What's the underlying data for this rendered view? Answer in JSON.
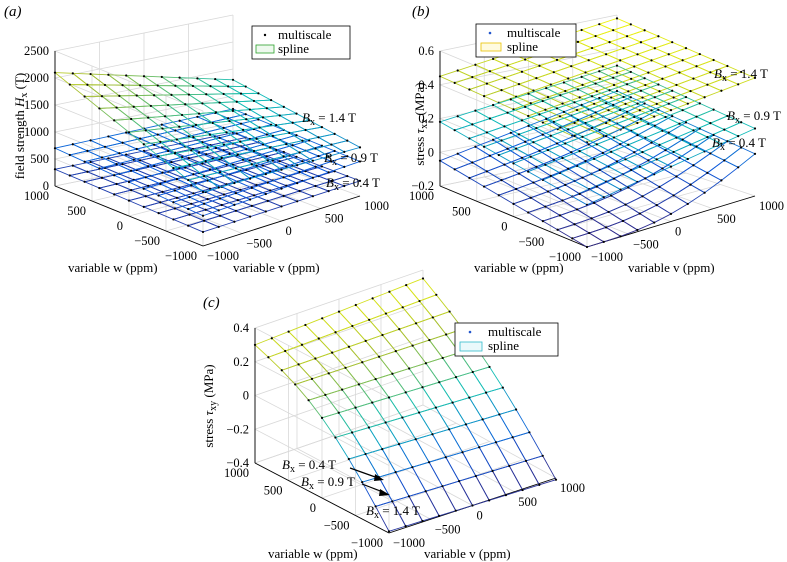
{
  "chart_data": [
    {
      "panel_label": "(a)",
      "type": "surface3d",
      "zlabel_prefix": "field strength ",
      "zlabel_sym": "H",
      "zlabel_sub": "x",
      "zlabel_suffix": " (T)",
      "xlabel": "variable v (ppm)",
      "ylabel": "variable w (ppm)",
      "x_ticks": [
        "−1000",
        "−500",
        "0",
        "500",
        "1000"
      ],
      "y_ticks": [
        "−1000",
        "−500",
        "0",
        "500",
        "1000"
      ],
      "z_ticks": [
        "0",
        "500",
        "1000",
        "1500",
        "2000",
        "2500"
      ],
      "xlim": [
        -1000,
        1000
      ],
      "ylim": [
        -1000,
        1000
      ],
      "zlim": [
        0,
        2500
      ],
      "legend": [
        "multiscale",
        "spline"
      ],
      "legend_colors": [
        "#2ca02c",
        "#2ca02c"
      ],
      "series": [
        {
          "name": "B_x = 0.4 T",
          "label_sym": "B",
          "label_sub": "x",
          "label_val": " = 0.4 T",
          "value_at_corners": {
            "v_min_w_max": 310,
            "v_max_w_max": 320,
            "v_min_w_min": 260,
            "v_max_w_min": 280
          }
        },
        {
          "name": "B_x = 0.9 T",
          "label_sym": "B",
          "label_sub": "x",
          "label_val": " = 0.9 T",
          "value_at_corners": {
            "v_min_w_max": 700,
            "v_max_w_max": 760,
            "v_min_w_min": 560,
            "v_max_w_min": 640
          }
        },
        {
          "name": "B_x = 1.4 T",
          "label_sym": "B",
          "label_sub": "x",
          "label_val": " = 1.4 T",
          "value_at_corners": {
            "v_min_w_max": 2100,
            "v_max_w_max": 1300,
            "v_min_w_min": 1000,
            "v_max_w_min": 900
          }
        }
      ]
    },
    {
      "panel_label": "(b)",
      "type": "surface3d",
      "zlabel_prefix": "stress ",
      "zlabel_sym": "τ",
      "zlabel_sub": "xx",
      "zlabel_suffix": " (MPa)",
      "xlabel": "variable v (ppm)",
      "ylabel": "variable w (ppm)",
      "x_ticks": [
        "−1000",
        "−500",
        "0",
        "500",
        "1000"
      ],
      "y_ticks": [
        "−1000",
        "−500",
        "0",
        "500",
        "1000"
      ],
      "z_ticks": [
        "−0.2",
        "0",
        "0.2",
        "0.4",
        "0.6"
      ],
      "xlim": [
        -1000,
        1000
      ],
      "ylim": [
        -1000,
        1000
      ],
      "zlim": [
        -0.2,
        0.6
      ],
      "legend": [
        "multiscale",
        "spline"
      ],
      "legend_colors": [
        "#2255cc",
        "#e8c200"
      ],
      "series": [
        {
          "name": "B_x = 1.4 T",
          "label_sym": "B",
          "label_sub": "x",
          "label_val": " = 1.4 T",
          "value_at_corners": {
            "v_min_w_max": 0.45,
            "v_max_w_max": 0.58,
            "v_min_w_min": 0.42,
            "v_max_w_min": 0.5
          }
        },
        {
          "name": "B_x = 0.9 T",
          "label_sym": "B",
          "label_sub": "x",
          "label_val": " = 0.9 T",
          "value_at_corners": {
            "v_min_w_max": 0.18,
            "v_max_w_max": 0.3,
            "v_min_w_min": 0.05,
            "v_max_w_min": 0.2
          }
        },
        {
          "name": "B_x = 0.4 T",
          "label_sym": "B",
          "label_sub": "x",
          "label_val": " = 0.4 T",
          "value_at_corners": {
            "v_min_w_max": -0.05,
            "v_max_w_max": 0.15,
            "v_min_w_min": -0.2,
            "v_max_w_min": 0.05
          }
        }
      ]
    },
    {
      "panel_label": "(c)",
      "type": "surface3d",
      "zlabel_prefix": "stress ",
      "zlabel_sym": "τ",
      "zlabel_sub": "xy",
      "zlabel_suffix": " (MPa)",
      "xlabel": "variable v (ppm)",
      "ylabel": "variable w (ppm)",
      "x_ticks": [
        "−1000",
        "−500",
        "0",
        "500",
        "1000"
      ],
      "y_ticks": [
        "−1000",
        "−500",
        "0",
        "500",
        "1000"
      ],
      "z_ticks": [
        "−0.4",
        "−0.2",
        "0",
        "0.2",
        "0.4"
      ],
      "xlim": [
        -1000,
        1000
      ],
      "ylim": [
        -1000,
        1000
      ],
      "zlim": [
        -0.4,
        0.4
      ],
      "legend": [
        "multiscale",
        "spline"
      ],
      "legend_colors": [
        "#2255cc",
        "#33bbcc"
      ],
      "series": [
        {
          "name": "B_x = 0.4 T",
          "label_sym": "B",
          "label_sub": "x",
          "label_val": " = 0.4 T",
          "value_at_corners": {
            "v_min_w_max": 0.3,
            "v_max_w_max": 0.35,
            "v_min_w_min": -0.38,
            "v_max_w_min": -0.4
          }
        },
        {
          "name": "B_x = 0.9 T",
          "label_sym": "B",
          "label_sub": "x",
          "label_val": " = 0.9 T",
          "value_at_corners": {
            "v_min_w_max": 0.3,
            "v_max_w_max": 0.35,
            "v_min_w_min": -0.38,
            "v_max_w_min": -0.4
          }
        },
        {
          "name": "B_x = 1.4 T",
          "label_sym": "B",
          "label_sub": "x",
          "label_val": " = 1.4 T",
          "value_at_corners": {
            "v_min_w_max": 0.3,
            "v_max_w_max": 0.35,
            "v_min_w_min": -0.38,
            "v_max_w_min": -0.4
          }
        }
      ]
    }
  ]
}
